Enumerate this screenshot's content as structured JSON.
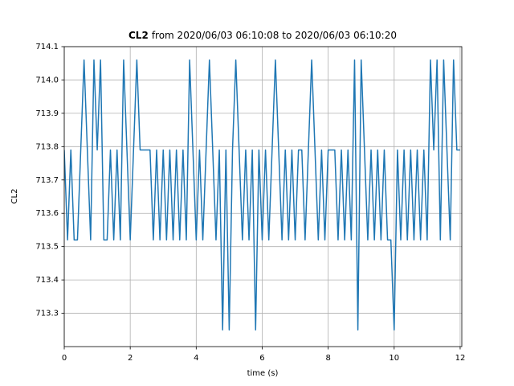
{
  "chart_data": {
    "type": "line",
    "title_bold": "CL2",
    "title": "from 2020/06/03 06:10:08 to 2020/06/03 06:10:20",
    "xlabel": "time (s)",
    "ylabel": "CL2",
    "xlim": [
      0,
      12.05
    ],
    "ylim": [
      713.2,
      714.1
    ],
    "xticks": [
      0,
      2,
      4,
      6,
      8,
      10,
      12
    ],
    "yticks": [
      713.3,
      713.4,
      713.5,
      713.6,
      713.7,
      713.8,
      713.9,
      {
        "value": 714,
        "label": "714.0"
      },
      714.1
    ],
    "grid": true,
    "x": [
      0,
      0.1,
      0.2,
      0.3,
      0.4,
      0.5,
      0.6,
      0.7,
      0.8,
      0.9,
      1,
      1.1,
      1.2,
      1.3,
      1.4,
      1.5,
      1.6,
      1.7,
      1.8,
      1.9,
      2,
      2.1,
      2.2,
      2.3,
      2.4,
      2.5,
      2.6,
      2.7,
      2.8,
      2.9,
      3,
      3.1,
      3.2,
      3.3,
      3.4,
      3.5,
      3.6,
      3.7,
      3.8,
      3.9,
      4,
      4.1,
      4.2,
      4.3,
      4.4,
      4.5,
      4.6,
      4.7,
      4.8,
      4.9,
      5,
      5.1,
      5.2,
      5.3,
      5.4,
      5.5,
      5.6,
      5.7,
      5.8,
      5.9,
      6,
      6.1,
      6.2,
      6.3,
      6.4,
      6.5,
      6.6,
      6.7,
      6.8,
      6.9,
      7,
      7.1,
      7.2,
      7.3,
      7.4,
      7.5,
      7.6,
      7.7,
      7.8,
      7.9,
      8,
      8.1,
      8.2,
      8.3,
      8.4,
      8.5,
      8.6,
      8.7,
      8.8,
      8.9,
      9,
      9.1,
      9.2,
      9.3,
      9.4,
      9.5,
      9.6,
      9.7,
      9.8,
      9.9,
      10,
      10.1,
      10.2,
      10.3,
      10.4,
      10.5,
      10.6,
      10.7,
      10.8,
      10.9,
      11,
      11.1,
      11.2,
      11.3,
      11.4,
      11.5,
      11.6,
      11.7,
      11.8,
      11.9,
      12
    ],
    "series": [
      {
        "name": "CL2",
        "color": "#1f77b4",
        "values": [
          713.79,
          713.52,
          713.79,
          713.52,
          713.52,
          713.79,
          714.06,
          713.79,
          713.52,
          714.06,
          713.79,
          714.06,
          713.52,
          713.52,
          713.79,
          713.52,
          713.79,
          713.52,
          714.06,
          713.79,
          713.52,
          713.79,
          714.06,
          713.79,
          713.79,
          713.79,
          713.79,
          713.52,
          713.79,
          713.52,
          713.79,
          713.52,
          713.79,
          713.52,
          713.79,
          713.52,
          713.79,
          713.52,
          714.06,
          713.79,
          713.52,
          713.79,
          713.52,
          713.79,
          714.06,
          713.79,
          713.52,
          713.79,
          713.25,
          713.79,
          713.25,
          713.79,
          714.06,
          713.79,
          713.52,
          713.79,
          713.52,
          713.79,
          713.25,
          713.79,
          713.52,
          713.79,
          713.52,
          713.79,
          714.06,
          713.79,
          713.52,
          713.79,
          713.52,
          713.79,
          713.52,
          713.79,
          713.79,
          713.52,
          713.79,
          714.06,
          713.79,
          713.52,
          713.79,
          713.52,
          713.79,
          713.79,
          713.79,
          713.52,
          713.79,
          713.52,
          713.79,
          713.52,
          714.06,
          713.25,
          714.06,
          713.79,
          713.52,
          713.79,
          713.52,
          713.79,
          713.52,
          713.79,
          713.52,
          713.52,
          713.25,
          713.79,
          713.52,
          713.79,
          713.52,
          713.79,
          713.52,
          713.79,
          713.52,
          713.79,
          713.52,
          714.06,
          713.79,
          714.06,
          713.52,
          714.06,
          713.79,
          713.52,
          714.06,
          713.79,
          713.79
        ]
      }
    ]
  }
}
